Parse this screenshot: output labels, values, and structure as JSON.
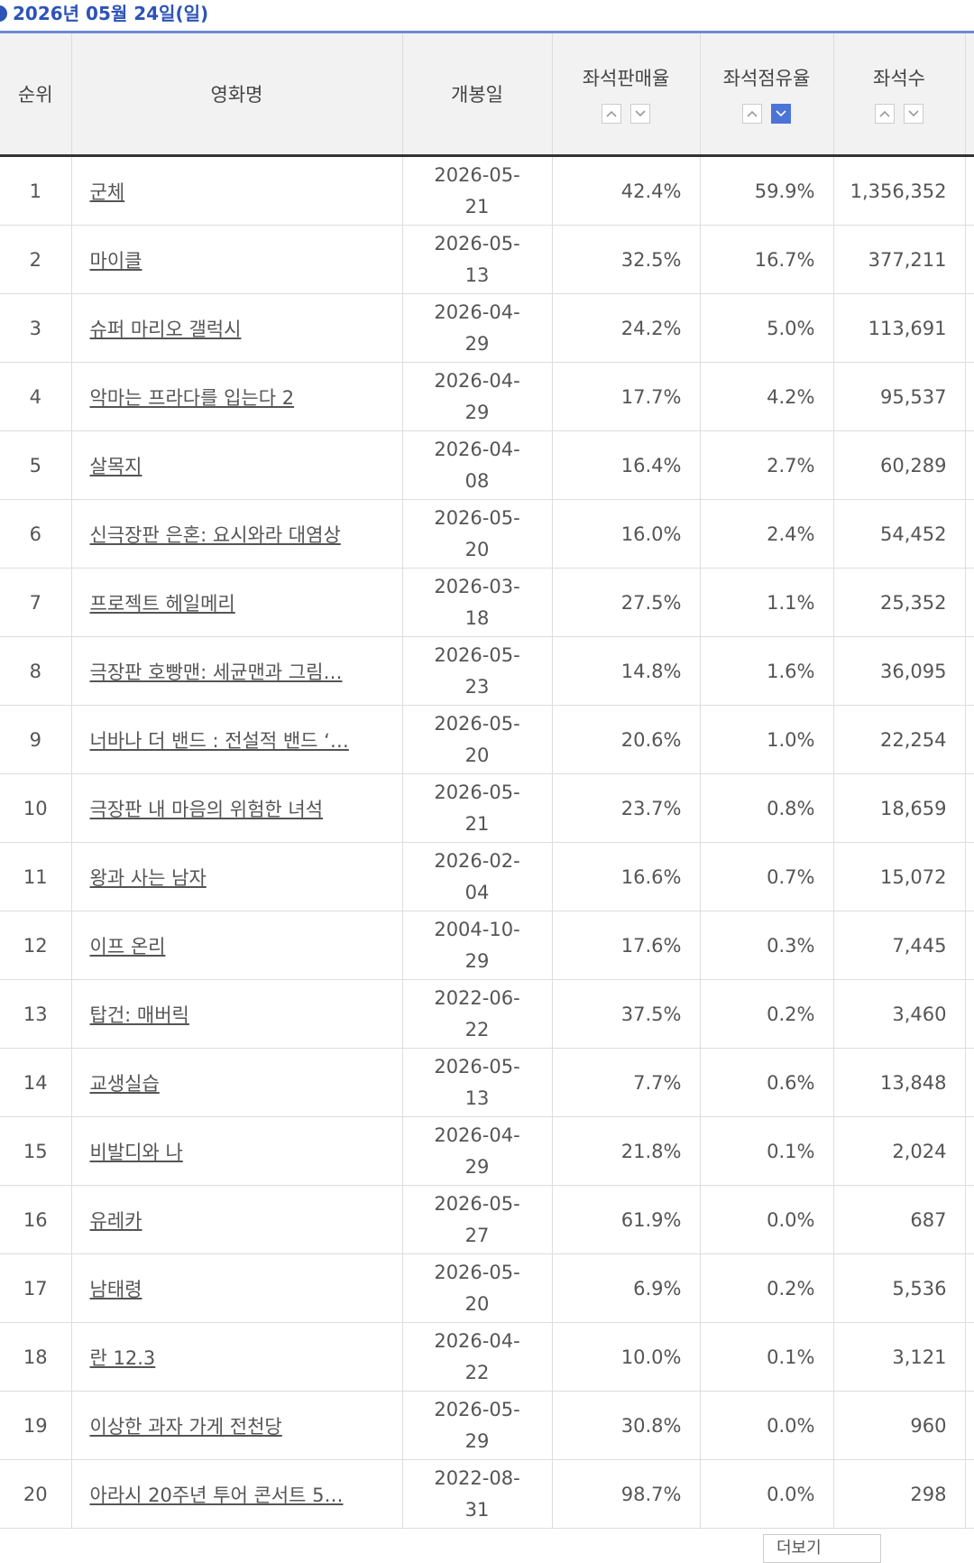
{
  "header": {
    "date": "2026년 05월 24일(일)"
  },
  "table": {
    "columns": [
      "순위",
      "영화명",
      "개봉일",
      "좌석판매율",
      "좌석점유율",
      "좌석수"
    ],
    "rows": [
      [
        "1",
        "군체",
        "2026-05-21",
        "42.4%",
        "59.9%",
        "1,356,352"
      ],
      [
        "2",
        "마이클",
        "2026-05-13",
        "32.5%",
        "16.7%",
        "377,211"
      ],
      [
        "3",
        "슈퍼 마리오 갤럭시",
        "2026-04-29",
        "24.2%",
        "5.0%",
        "113,691"
      ],
      [
        "4",
        "악마는 프라다를 입는다 2",
        "2026-04-29",
        "17.7%",
        "4.2%",
        "95,537"
      ],
      [
        "5",
        "살목지",
        "2026-04-08",
        "16.4%",
        "2.7%",
        "60,289"
      ],
      [
        "6",
        "신극장판 은혼: 요시와라 대염상",
        "2026-05-20",
        "16.0%",
        "2.4%",
        "54,452"
      ],
      [
        "7",
        "프로젝트 헤일메리",
        "2026-03-18",
        "27.5%",
        "1.1%",
        "25,352"
      ],
      [
        "8",
        "극장판 호빵맨: 세균맨과 그림…",
        "2026-05-23",
        "14.8%",
        "1.6%",
        "36,095"
      ],
      [
        "9",
        "너바나 더 밴드 : 전설적 밴드 ‘…",
        "2026-05-20",
        "20.6%",
        "1.0%",
        "22,254"
      ],
      [
        "10",
        "극장판 내 마음의 위험한 녀석",
        "2026-05-21",
        "23.7%",
        "0.8%",
        "18,659"
      ],
      [
        "11",
        "왕과 사는 남자",
        "2026-02-04",
        "16.6%",
        "0.7%",
        "15,072"
      ],
      [
        "12",
        "이프 온리",
        "2004-10-29",
        "17.6%",
        "0.3%",
        "7,445"
      ],
      [
        "13",
        "탑건: 매버릭",
        "2022-06-22",
        "37.5%",
        "0.2%",
        "3,460"
      ],
      [
        "14",
        "교생실습",
        "2026-05-13",
        "7.7%",
        "0.6%",
        "13,848"
      ],
      [
        "15",
        "비발디와 나",
        "2026-04-29",
        "21.8%",
        "0.1%",
        "2,024"
      ],
      [
        "16",
        "유레카",
        "2026-05-27",
        "61.9%",
        "0.0%",
        "687"
      ],
      [
        "17",
        "남태령",
        "2026-05-20",
        "6.9%",
        "0.2%",
        "5,536"
      ],
      [
        "18",
        "란 12.3",
        "2026-04-22",
        "10.0%",
        "0.1%",
        "3,121"
      ],
      [
        "19",
        "이상한 과자 가게 전천당",
        "2026-05-29",
        "30.8%",
        "0.0%",
        "960"
      ],
      [
        "20",
        "아라시 20주년 투어 콘서트 5…",
        "2022-08-31",
        "98.7%",
        "0.0%",
        "298"
      ]
    ]
  },
  "footer": {
    "more": "더보기"
  }
}
